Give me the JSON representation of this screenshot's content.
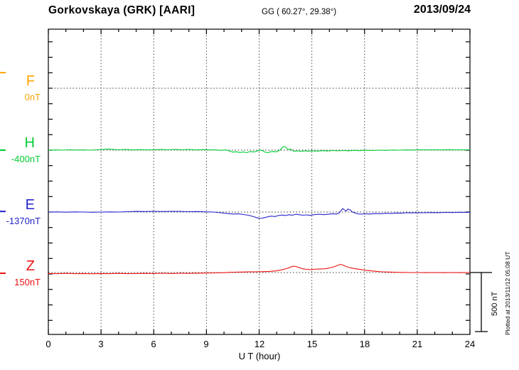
{
  "header": {
    "title": "Gorkovskaya (GRK)  [AARI]",
    "coords": "GG ( 60.27°,  29.38°)",
    "date": "2013/09/24"
  },
  "axis": {
    "xlabel": "U T (hour)",
    "xticks": [
      "0",
      "3",
      "6",
      "9",
      "12",
      "15",
      "18",
      "21",
      "24"
    ]
  },
  "channels": [
    {
      "letter": "F",
      "baseline_label": "0nT",
      "color": "#FFA500"
    },
    {
      "letter": "H",
      "baseline_label": "-400nT",
      "color": "#00CC33"
    },
    {
      "letter": "E",
      "baseline_label": "-1370nT",
      "color": "#2323CC"
    },
    {
      "letter": "Z",
      "baseline_label": "150nT",
      "color": "#EE1111"
    }
  ],
  "scalebar": {
    "label": "500 nT",
    "nT": 500
  },
  "footnote": "Plotted at 2013/11/12 05:08 UT",
  "chart_data": {
    "type": "line",
    "title": "Gorkovskaya (GRK) [AARI] magnetogram 2013/09/24",
    "xlabel": "U T (hour)",
    "x_range": [
      0,
      24
    ],
    "x_major_step": 3,
    "x_minor_step": 1,
    "grid": "dotted vertical lines every 3 h; dotted horizontal line at each channel baseline",
    "legend_position": "left margin channel labels",
    "scale_bar_nT": 500,
    "series": [
      {
        "name": "F",
        "color": "#FFA500",
        "baseline_label": "0nT",
        "start_marker_nT": 126,
        "points": []
      },
      {
        "name": "H",
        "color": "#00CC33",
        "baseline_label": "-400nT",
        "start_marker_nT": 0,
        "points": [
          [
            0,
            0
          ],
          [
            0.4,
            2
          ],
          [
            0.8,
            0
          ],
          [
            1.2,
            3
          ],
          [
            1.6,
            1
          ],
          [
            2,
            2
          ],
          [
            2.4,
            0
          ],
          [
            2.8,
            3
          ],
          [
            3.1,
            6
          ],
          [
            3.4,
            9
          ],
          [
            3.7,
            5
          ],
          [
            4,
            3
          ],
          [
            4.4,
            5
          ],
          [
            4.8,
            2
          ],
          [
            5.2,
            4
          ],
          [
            5.6,
            2
          ],
          [
            6,
            3
          ],
          [
            6.4,
            5
          ],
          [
            6.8,
            3
          ],
          [
            7.2,
            6
          ],
          [
            7.6,
            3
          ],
          [
            8,
            5
          ],
          [
            8.4,
            2
          ],
          [
            8.8,
            4
          ],
          [
            9.2,
            1
          ],
          [
            9.5,
            3
          ],
          [
            9.8,
            -2
          ],
          [
            10.1,
            2
          ],
          [
            10.3,
            -6
          ],
          [
            10.5,
            -16
          ],
          [
            10.7,
            -13
          ],
          [
            10.9,
            -19
          ],
          [
            11.1,
            -15
          ],
          [
            11.3,
            -20
          ],
          [
            11.5,
            -11
          ],
          [
            11.7,
            -15
          ],
          [
            11.9,
            -7
          ],
          [
            12.05,
            2
          ],
          [
            12.2,
            -4
          ],
          [
            12.35,
            -17
          ],
          [
            12.5,
            -20
          ],
          [
            12.65,
            -13
          ],
          [
            12.8,
            -11
          ],
          [
            13,
            -14
          ],
          [
            13.1,
            -6
          ],
          [
            13.2,
            2
          ],
          [
            13.3,
            18
          ],
          [
            13.4,
            30
          ],
          [
            13.5,
            26
          ],
          [
            13.6,
            12
          ],
          [
            13.7,
            4
          ],
          [
            13.8,
            8
          ],
          [
            13.9,
            -2
          ],
          [
            14,
            -10
          ],
          [
            14.2,
            -6
          ],
          [
            14.4,
            -10
          ],
          [
            14.6,
            -5
          ],
          [
            14.8,
            -9
          ],
          [
            15,
            -5
          ],
          [
            15.3,
            -8
          ],
          [
            15.6,
            -4
          ],
          [
            15.9,
            -7
          ],
          [
            16.2,
            -3
          ],
          [
            16.5,
            -6
          ],
          [
            16.8,
            -3
          ],
          [
            17.1,
            -5
          ],
          [
            17.4,
            -2
          ],
          [
            17.7,
            -4
          ],
          [
            18,
            -1
          ],
          [
            18.4,
            -3
          ],
          [
            18.8,
            0
          ],
          [
            19.2,
            -2
          ],
          [
            19.6,
            1
          ],
          [
            20,
            0
          ],
          [
            20.4,
            2
          ],
          [
            20.8,
            1
          ],
          [
            21.2,
            3
          ],
          [
            21.6,
            2
          ],
          [
            22,
            3
          ],
          [
            22.4,
            2
          ],
          [
            22.8,
            4
          ],
          [
            23.2,
            2
          ],
          [
            23.6,
            3
          ],
          [
            24,
            3
          ]
        ]
      },
      {
        "name": "E",
        "color": "#2323CC",
        "baseline_label": "-1370nT",
        "start_marker_nT": 5,
        "points": [
          [
            0,
            0
          ],
          [
            0.5,
            1
          ],
          [
            1,
            -1
          ],
          [
            1.5,
            1
          ],
          [
            2,
            0
          ],
          [
            2.5,
            -2
          ],
          [
            3,
            0
          ],
          [
            3.5,
            1
          ],
          [
            4,
            0
          ],
          [
            4.5,
            3
          ],
          [
            5,
            5
          ],
          [
            5.5,
            4
          ],
          [
            6,
            6
          ],
          [
            6.5,
            4
          ],
          [
            7,
            6
          ],
          [
            7.5,
            5
          ],
          [
            8,
            3
          ],
          [
            8.5,
            4
          ],
          [
            9,
            1
          ],
          [
            9.4,
            0
          ],
          [
            9.8,
            -6
          ],
          [
            10.2,
            -12
          ],
          [
            10.5,
            -16
          ],
          [
            10.8,
            -14
          ],
          [
            11.1,
            -20
          ],
          [
            11.4,
            -26
          ],
          [
            11.7,
            -38
          ],
          [
            11.9,
            -47
          ],
          [
            12.1,
            -52
          ],
          [
            12.3,
            -45
          ],
          [
            12.5,
            -38
          ],
          [
            12.7,
            -33
          ],
          [
            12.9,
            -36
          ],
          [
            13.1,
            -28
          ],
          [
            13.3,
            -24
          ],
          [
            13.5,
            -28
          ],
          [
            13.7,
            -22
          ],
          [
            13.9,
            -25
          ],
          [
            14.1,
            -18
          ],
          [
            14.3,
            -22
          ],
          [
            14.5,
            -26
          ],
          [
            14.7,
            -23
          ],
          [
            14.9,
            -27
          ],
          [
            15.1,
            -22
          ],
          [
            15.4,
            -18
          ],
          [
            15.7,
            -21
          ],
          [
            16,
            -16
          ],
          [
            16.2,
            -14
          ],
          [
            16.4,
            -16
          ],
          [
            16.55,
            -8
          ],
          [
            16.65,
            10
          ],
          [
            16.75,
            28
          ],
          [
            16.85,
            18
          ],
          [
            16.95,
            8
          ],
          [
            17.05,
            24
          ],
          [
            17.15,
            20
          ],
          [
            17.3,
            2
          ],
          [
            17.45,
            -8
          ],
          [
            17.6,
            -14
          ],
          [
            17.8,
            -17
          ],
          [
            18,
            -14
          ],
          [
            18.3,
            -16
          ],
          [
            18.6,
            -12
          ],
          [
            18.9,
            -14
          ],
          [
            19.2,
            -10
          ],
          [
            19.5,
            -12
          ],
          [
            19.8,
            -8
          ],
          [
            20.1,
            -9
          ],
          [
            20.4,
            -6
          ],
          [
            20.7,
            -7
          ],
          [
            21,
            -5
          ],
          [
            21.4,
            -6
          ],
          [
            21.8,
            -4
          ],
          [
            22.2,
            -5
          ],
          [
            22.6,
            -3
          ],
          [
            23,
            -4
          ],
          [
            23.4,
            -2
          ],
          [
            23.8,
            -3
          ],
          [
            24,
            -2
          ]
        ]
      },
      {
        "name": "Z",
        "color": "#EE1111",
        "baseline_label": "150nT",
        "start_marker_nT": -6,
        "points": [
          [
            0,
            -8
          ],
          [
            0.5,
            -9
          ],
          [
            1,
            -7
          ],
          [
            1.5,
            -9
          ],
          [
            2,
            -8
          ],
          [
            2.5,
            -10
          ],
          [
            3,
            -8
          ],
          [
            3.5,
            -9
          ],
          [
            4,
            -7
          ],
          [
            4.5,
            -9
          ],
          [
            5,
            -8
          ],
          [
            5.5,
            -7
          ],
          [
            6,
            -8
          ],
          [
            6.5,
            -6
          ],
          [
            7,
            -8
          ],
          [
            7.5,
            -6
          ],
          [
            8,
            -7
          ],
          [
            8.5,
            -5
          ],
          [
            9,
            -4
          ],
          [
            9.5,
            -3
          ],
          [
            10,
            -1
          ],
          [
            10.3,
            2
          ],
          [
            10.6,
            3
          ],
          [
            11,
            4
          ],
          [
            11.4,
            5
          ],
          [
            11.8,
            6
          ],
          [
            12.2,
            7
          ],
          [
            12.6,
            9
          ],
          [
            13,
            14
          ],
          [
            13.3,
            22
          ],
          [
            13.6,
            34
          ],
          [
            13.8,
            44
          ],
          [
            13.95,
            52
          ],
          [
            14.1,
            48
          ],
          [
            14.3,
            38
          ],
          [
            14.5,
            30
          ],
          [
            14.7,
            26
          ],
          [
            14.9,
            24
          ],
          [
            15.1,
            26
          ],
          [
            15.4,
            28
          ],
          [
            15.7,
            30
          ],
          [
            15.9,
            34
          ],
          [
            16.1,
            40
          ],
          [
            16.3,
            48
          ],
          [
            16.5,
            60
          ],
          [
            16.65,
            66
          ],
          [
            16.8,
            58
          ],
          [
            17,
            46
          ],
          [
            17.2,
            38
          ],
          [
            17.5,
            30
          ],
          [
            17.8,
            24
          ],
          [
            18.1,
            18
          ],
          [
            18.4,
            13
          ],
          [
            18.7,
            9
          ],
          [
            19,
            6
          ],
          [
            19.4,
            4
          ],
          [
            19.8,
            2
          ],
          [
            20.2,
            1
          ],
          [
            20.6,
            0
          ],
          [
            21,
            0
          ],
          [
            21.5,
            -1
          ],
          [
            22,
            0
          ],
          [
            22.5,
            -1
          ],
          [
            23,
            0
          ],
          [
            23.5,
            -1
          ],
          [
            24,
            0
          ]
        ]
      }
    ]
  }
}
